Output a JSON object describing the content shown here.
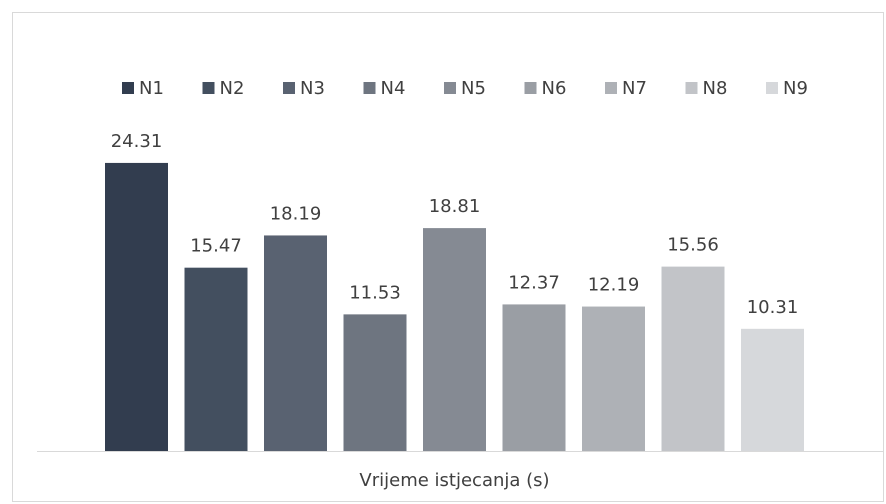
{
  "chart_data": {
    "type": "bar",
    "categories": [
      "Vrijeme istjecanja (s)"
    ],
    "series": [
      {
        "name": "N1",
        "color": "#323d4f",
        "values": [
          24.31
        ]
      },
      {
        "name": "N2",
        "color": "#434f5f",
        "values": [
          15.47
        ]
      },
      {
        "name": "N3",
        "color": "#596271",
        "values": [
          18.19
        ]
      },
      {
        "name": "N4",
        "color": "#6e7580",
        "values": [
          11.53
        ]
      },
      {
        "name": "N5",
        "color": "#858a93",
        "values": [
          18.81
        ]
      },
      {
        "name": "N6",
        "color": "#9a9ea4",
        "values": [
          12.37
        ]
      },
      {
        "name": "N7",
        "color": "#aeb1b6",
        "values": [
          12.19
        ]
      },
      {
        "name": "N8",
        "color": "#c2c4c8",
        "values": [
          15.56
        ]
      },
      {
        "name": "N9",
        "color": "#d6d8db",
        "values": [
          10.31
        ]
      }
    ],
    "ylim": [
      0,
      30
    ],
    "legend": "top"
  }
}
